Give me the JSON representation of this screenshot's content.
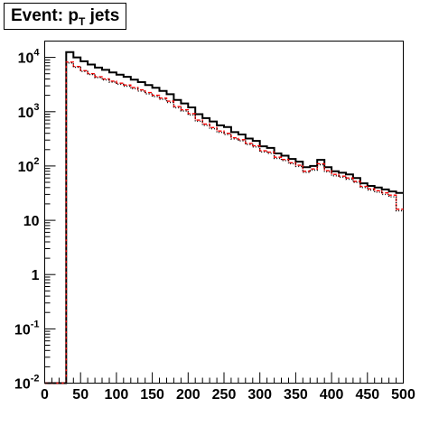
{
  "chart_data": {
    "type": "histogram",
    "title": "Event: p",
    "title_subscript": "T",
    "title_suffix": " jets",
    "xlabel": "",
    "ylabel": "",
    "xlim": [
      0,
      500
    ],
    "ylim": [
      0.01,
      20000
    ],
    "yscale": "log",
    "grid": false,
    "legend": "none",
    "bin_width": 10,
    "x_ticks": [
      {
        "value": 0,
        "label": "0"
      },
      {
        "value": 50,
        "label": "50"
      },
      {
        "value": 100,
        "label": "100"
      },
      {
        "value": 150,
        "label": "150"
      },
      {
        "value": 200,
        "label": "200"
      },
      {
        "value": 250,
        "label": "250"
      },
      {
        "value": 300,
        "label": "300"
      },
      {
        "value": 350,
        "label": "350"
      },
      {
        "value": 400,
        "label": "400"
      },
      {
        "value": 450,
        "label": "450"
      },
      {
        "value": 500,
        "label": "500"
      }
    ],
    "y_ticks": [
      {
        "value": 0.01,
        "base": "10",
        "exp": "-2"
      },
      {
        "value": 0.1,
        "base": "10",
        "exp": "-1"
      },
      {
        "value": 1,
        "base": "1",
        "exp": ""
      },
      {
        "value": 10,
        "base": "10",
        "exp": ""
      },
      {
        "value": 100,
        "base": "10",
        "exp": "2"
      },
      {
        "value": 1000,
        "base": "10",
        "exp": "3"
      },
      {
        "value": 10000,
        "base": "10",
        "exp": "4"
      }
    ],
    "x_edges": [
      0,
      10,
      20,
      30,
      40,
      50,
      60,
      70,
      80,
      90,
      100,
      110,
      120,
      130,
      140,
      150,
      160,
      170,
      180,
      190,
      200,
      210,
      220,
      230,
      240,
      250,
      260,
      270,
      280,
      290,
      300,
      310,
      320,
      330,
      340,
      350,
      360,
      370,
      380,
      390,
      400,
      410,
      420,
      430,
      440,
      450,
      460,
      470,
      480,
      490,
      500
    ],
    "series": [
      {
        "color": "#000000",
        "style": "solid",
        "values": [
          0.01,
          0.01,
          0.01,
          12500,
          10000,
          8500,
          7400,
          6500,
          5900,
          5300,
          4800,
          4400,
          3900,
          3500,
          3100,
          2750,
          2420,
          2100,
          1650,
          1420,
          1200,
          900,
          760,
          660,
          560,
          520,
          420,
          380,
          320,
          290,
          230,
          215,
          170,
          155,
          135,
          120,
          95,
          100,
          130,
          95,
          80,
          75,
          70,
          60,
          48,
          43,
          40,
          37,
          34,
          32
        ]
      },
      {
        "color": "#ff0000",
        "style": "dashed",
        "values": [
          0.01,
          0.01,
          0.01,
          8200,
          6800,
          5700,
          5000,
          4400,
          4000,
          3650,
          3350,
          3100,
          2800,
          2520,
          2250,
          2000,
          1780,
          1560,
          1240,
          1080,
          920,
          700,
          590,
          510,
          440,
          400,
          330,
          305,
          260,
          235,
          190,
          180,
          145,
          132,
          115,
          103,
          80,
          88,
          110,
          82,
          70,
          65,
          60,
          52,
          42,
          38,
          35,
          32,
          29,
          16
        ]
      },
      {
        "color": "#000000",
        "style": "dotted",
        "values": [
          0.01,
          0.01,
          0.01,
          7900,
          6600,
          5500,
          4850,
          4250,
          3850,
          3500,
          3200,
          2950,
          2650,
          2400,
          2130,
          1900,
          1690,
          1480,
          1180,
          1030,
          870,
          665,
          560,
          485,
          415,
          380,
          315,
          290,
          248,
          224,
          181,
          171,
          138,
          126,
          110,
          98,
          76,
          84,
          105,
          78,
          66,
          62,
          57,
          50,
          40,
          36,
          33,
          30,
          27,
          15
        ]
      }
    ]
  }
}
